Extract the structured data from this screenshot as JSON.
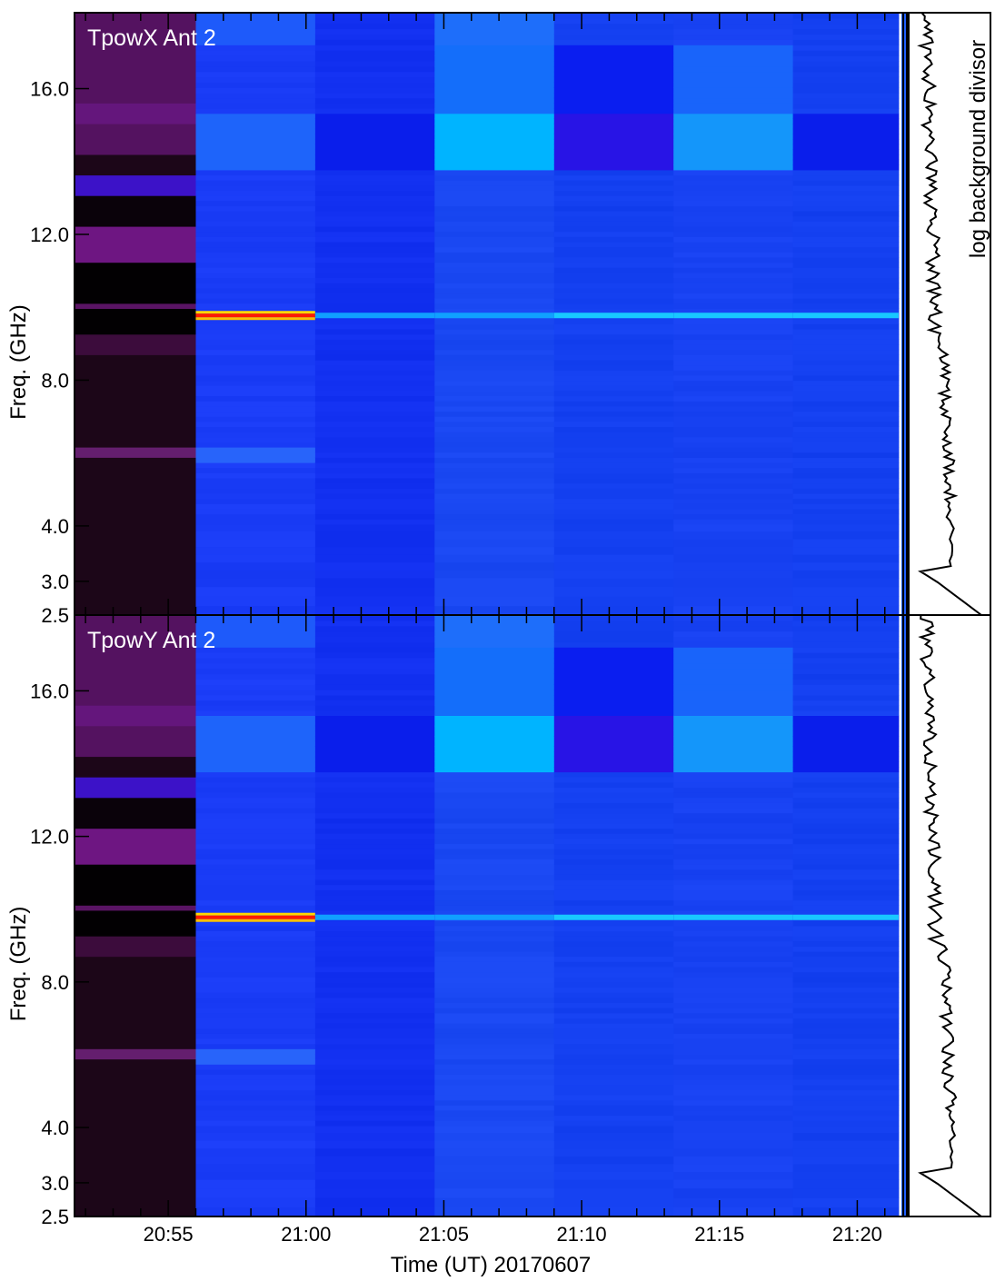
{
  "chart_data": {
    "type": "heatmap",
    "xlabel": "Time (UT) 20170607",
    "side_panel_label": "log background divisor",
    "x_tick_labels": [
      "20:55",
      "21:00",
      "21:05",
      "21:10",
      "21:15",
      "21:20"
    ],
    "x_tick_minutes": [
      55,
      60,
      65,
      70,
      75,
      80
    ],
    "xlim_minutes_after_2000": [
      51.6,
      81.8
    ],
    "ylim_ghz": [
      2.5,
      18.0
    ],
    "y_scale": "custom nonlinear (frequency channel index)",
    "y_tick_values": [
      2.5,
      3.0,
      4.0,
      8.0,
      12.0,
      16.0
    ],
    "y_tick_labels": [
      "2.5",
      "3.0",
      "4.0",
      "8.0",
      "12.0",
      "16.0"
    ],
    "colormap": "blue-cyan-yellow-red (purple/black background segment)",
    "panels": [
      {
        "label": "TpowX Ant 2",
        "ylabel": "Freq. (GHz)",
        "time_segments": [
          {
            "start": "20:51:36",
            "end": "20:56:00",
            "mode": "background",
            "base_color": "#1c0618"
          },
          {
            "start": "20:56:00",
            "end": "21:00:20",
            "base_color": "#1a3cf6",
            "band_9_6GHz": "strong red-yellow line"
          },
          {
            "start": "21:00:20",
            "end": "21:04:40",
            "base_color": "#1230f0"
          },
          {
            "start": "21:04:40",
            "end": "21:09:00",
            "base_color": "#1a48f2",
            "band_14_6GHz": "cyan"
          },
          {
            "start": "21:09:00",
            "end": "21:13:20",
            "base_color": "#1440f0"
          },
          {
            "start": "21:13:20",
            "end": "21:17:40",
            "base_color": "#1842f2",
            "band_14_6GHz": "light blue"
          },
          {
            "start": "21:17:40",
            "end": "21:21:30",
            "base_color": "#1440f0"
          }
        ]
      },
      {
        "label": "TpowY Ant 2",
        "ylabel": "Freq. (GHz)",
        "time_segments": [
          {
            "start": "20:51:36",
            "end": "20:56:00",
            "mode": "background",
            "base_color": "#1c0618"
          },
          {
            "start": "20:56:00",
            "end": "21:00:20",
            "base_color": "#1a3cf6",
            "band_9_6GHz": "strong red-yellow line"
          },
          {
            "start": "21:00:20",
            "end": "21:04:40",
            "base_color": "#1230f0"
          },
          {
            "start": "21:04:40",
            "end": "21:09:00",
            "base_color": "#1a48f2",
            "band_14_6GHz": "cyan"
          },
          {
            "start": "21:09:00",
            "end": "21:13:20",
            "base_color": "#1440f0"
          },
          {
            "start": "21:13:20",
            "end": "21:17:40",
            "base_color": "#1842f2",
            "band_14_6GHz": "light blue"
          },
          {
            "start": "21:17:40",
            "end": "21:21:30",
            "base_color": "#1440f0"
          }
        ]
      }
    ]
  }
}
